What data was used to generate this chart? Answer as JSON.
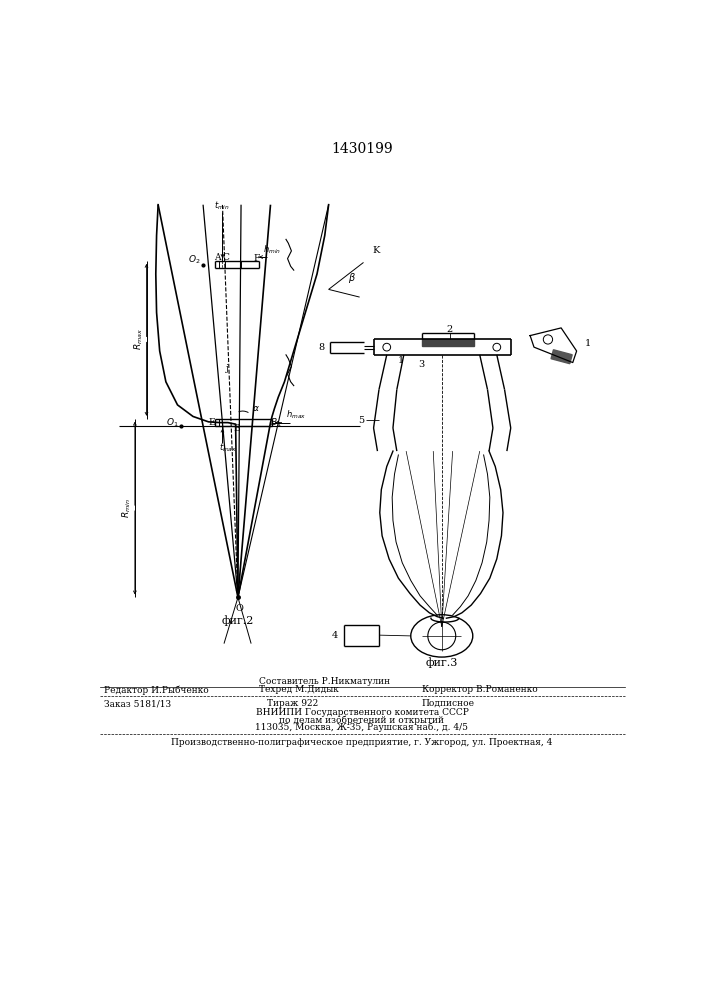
{
  "title": "1430199",
  "bg_color": "#ffffff",
  "line_color": "#000000",
  "fig2_label": "фиг.2",
  "fig3_label": "фиг.3",
  "footer": {
    "col1_line1": "Редактор И.Рыбченко",
    "col2_line1": "Составитель Р.Никматулин",
    "col2_line2": "Техред М.Дидык",
    "col3_line2": "Корректор В.Романенко",
    "order": "Заказ 5181/13",
    "print_run": "Тираж 922",
    "signed": "Подписное",
    "vniipи1": "ВНИИПИ Государственного комитета СССР",
    "vniipи2": "по делам изобретений и открытий",
    "vniipи3": "113035, Москва, Ж-35, Раушская наб., д. 4/5",
    "last": "Производственно-полиграфическое предприятие, г. Ужгород, ул. Проектная, 4"
  }
}
